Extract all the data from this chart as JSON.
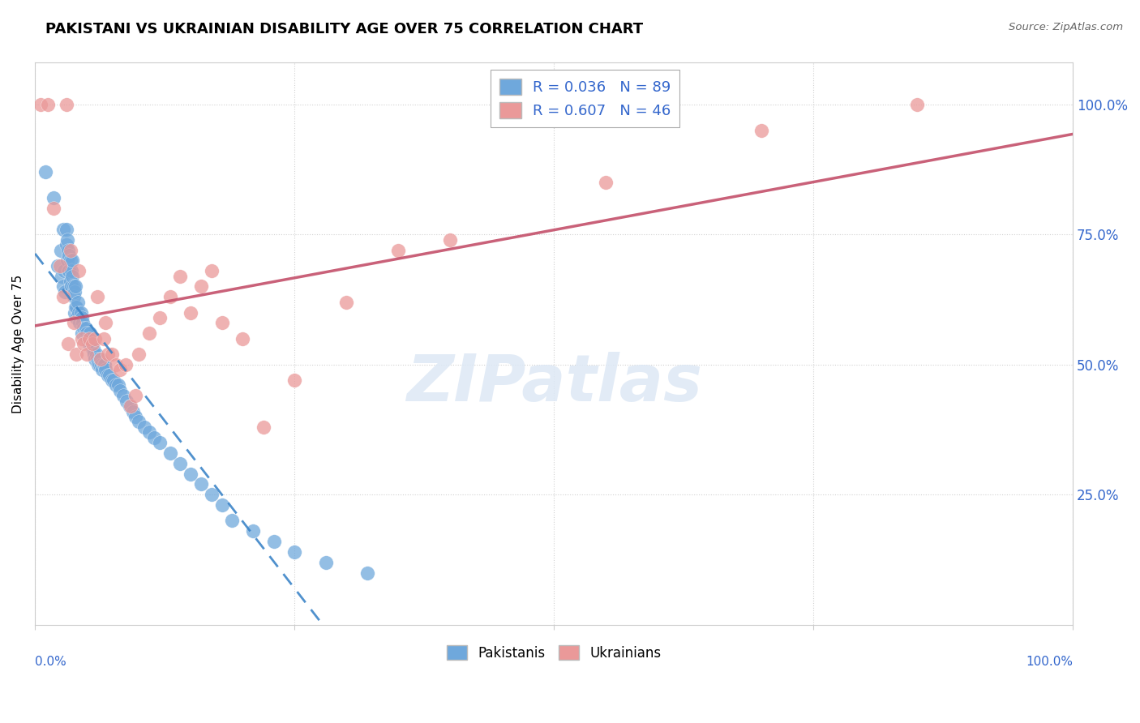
{
  "title": "PAKISTANI VS UKRAINIAN DISABILITY AGE OVER 75 CORRELATION CHART",
  "source": "Source: ZipAtlas.com",
  "ylabel": "Disability Age Over 75",
  "r_pakistani": 0.036,
  "n_pakistani": 89,
  "r_ukrainian": 0.607,
  "n_ukrainian": 46,
  "pakistani_color": "#6fa8dc",
  "ukrainian_color": "#ea9999",
  "pakistani_line_color": "#3d85c8",
  "ukrainian_line_color": "#c4506a",
  "watermark_text": "ZIPatlas",
  "pakistani_x": [
    0.01,
    0.018,
    0.022,
    0.025,
    0.026,
    0.027,
    0.027,
    0.028,
    0.029,
    0.03,
    0.03,
    0.031,
    0.031,
    0.032,
    0.032,
    0.033,
    0.033,
    0.034,
    0.034,
    0.035,
    0.035,
    0.036,
    0.036,
    0.037,
    0.037,
    0.038,
    0.038,
    0.039,
    0.039,
    0.04,
    0.04,
    0.041,
    0.042,
    0.043,
    0.044,
    0.045,
    0.045,
    0.046,
    0.047,
    0.048,
    0.049,
    0.05,
    0.051,
    0.052,
    0.053,
    0.054,
    0.055,
    0.056,
    0.057,
    0.058,
    0.059,
    0.06,
    0.061,
    0.062,
    0.063,
    0.064,
    0.065,
    0.066,
    0.067,
    0.068,
    0.07,
    0.072,
    0.074,
    0.076,
    0.078,
    0.08,
    0.082,
    0.085,
    0.088,
    0.091,
    0.094,
    0.097,
    0.1,
    0.105,
    0.11,
    0.115,
    0.12,
    0.13,
    0.14,
    0.15,
    0.16,
    0.17,
    0.18,
    0.19,
    0.21,
    0.23,
    0.25,
    0.28,
    0.32
  ],
  "pakistani_y": [
    0.87,
    0.82,
    0.69,
    0.72,
    0.67,
    0.65,
    0.76,
    0.68,
    0.64,
    0.76,
    0.73,
    0.7,
    0.74,
    0.72,
    0.68,
    0.71,
    0.68,
    0.7,
    0.66,
    0.68,
    0.65,
    0.67,
    0.7,
    0.65,
    0.63,
    0.64,
    0.6,
    0.61,
    0.65,
    0.61,
    0.59,
    0.62,
    0.6,
    0.58,
    0.6,
    0.59,
    0.56,
    0.58,
    0.57,
    0.56,
    0.57,
    0.56,
    0.55,
    0.54,
    0.56,
    0.54,
    0.53,
    0.53,
    0.52,
    0.51,
    0.52,
    0.51,
    0.5,
    0.5,
    0.51,
    0.5,
    0.49,
    0.5,
    0.5,
    0.49,
    0.48,
    0.48,
    0.47,
    0.47,
    0.46,
    0.46,
    0.45,
    0.44,
    0.43,
    0.42,
    0.41,
    0.4,
    0.39,
    0.38,
    0.37,
    0.36,
    0.35,
    0.33,
    0.31,
    0.29,
    0.27,
    0.25,
    0.23,
    0.2,
    0.18,
    0.16,
    0.14,
    0.12,
    0.1
  ],
  "ukrainian_x": [
    0.005,
    0.012,
    0.018,
    0.024,
    0.027,
    0.03,
    0.032,
    0.034,
    0.037,
    0.04,
    0.042,
    0.045,
    0.047,
    0.05,
    0.052,
    0.055,
    0.058,
    0.06,
    0.063,
    0.066,
    0.068,
    0.07,
    0.074,
    0.078,
    0.082,
    0.087,
    0.092,
    0.097,
    0.1,
    0.11,
    0.12,
    0.13,
    0.14,
    0.15,
    0.16,
    0.17,
    0.18,
    0.2,
    0.22,
    0.25,
    0.3,
    0.35,
    0.4,
    0.55,
    0.7,
    0.85
  ],
  "ukrainian_y": [
    1.0,
    1.0,
    0.8,
    0.69,
    0.63,
    1.0,
    0.54,
    0.72,
    0.58,
    0.52,
    0.68,
    0.55,
    0.54,
    0.52,
    0.55,
    0.54,
    0.55,
    0.63,
    0.51,
    0.55,
    0.58,
    0.52,
    0.52,
    0.5,
    0.49,
    0.5,
    0.42,
    0.44,
    0.52,
    0.56,
    0.59,
    0.63,
    0.67,
    0.6,
    0.65,
    0.68,
    0.58,
    0.55,
    0.38,
    0.47,
    0.62,
    0.72,
    0.74,
    0.85,
    0.95,
    1.0
  ],
  "xlim": [
    0.0,
    1.0
  ],
  "ylim": [
    0.0,
    1.08
  ],
  "yticks": [
    0.25,
    0.5,
    0.75,
    1.0
  ],
  "ytick_labels": [
    "25.0%",
    "50.0%",
    "75.0%",
    "100.0%"
  ],
  "xtick_left": "0.0%",
  "xtick_right": "100.0%"
}
